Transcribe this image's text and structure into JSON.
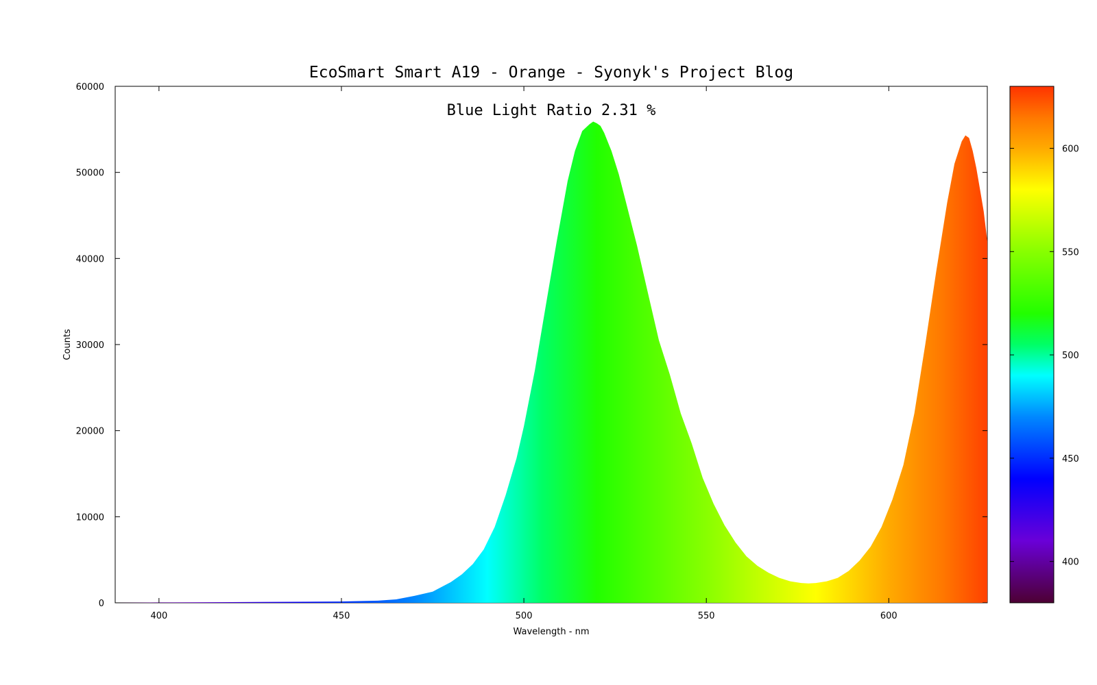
{
  "chart_data": {
    "type": "area",
    "title": "EcoSmart Smart A19 - Orange - Syonyk's Project Blog",
    "annotation": "Blue Light Ratio 2.31 %",
    "xlabel": "Wavelength - nm",
    "ylabel": "Counts",
    "xlim": [
      388,
      627
    ],
    "ylim": [
      0,
      60000
    ],
    "xticks": [
      400,
      450,
      500,
      550,
      600
    ],
    "yticks": [
      0,
      10000,
      20000,
      30000,
      40000,
      50000,
      60000
    ],
    "colorbar": {
      "range": [
        380,
        630
      ],
      "ticks": [
        400,
        450,
        500,
        550,
        600
      ]
    },
    "series": [
      {
        "x": [
          388,
          400,
          420,
          440,
          450,
          460,
          465,
          470,
          475,
          480,
          483,
          486,
          489,
          492,
          495,
          498,
          500,
          503,
          506,
          509,
          512,
          514,
          516,
          518,
          519,
          520,
          521,
          522,
          524,
          526,
          528,
          531,
          534,
          537,
          540,
          543,
          546,
          549,
          552,
          555,
          558,
          561,
          564,
          567,
          570,
          573,
          576,
          578,
          580,
          583,
          586,
          589,
          592,
          595,
          598,
          601,
          604,
          607,
          610,
          613,
          616,
          618,
          620,
          621,
          622,
          623,
          624,
          625,
          626,
          627
        ],
        "y": [
          0,
          50,
          80,
          120,
          150,
          250,
          400,
          800,
          1300,
          2400,
          3300,
          4500,
          6200,
          8800,
          12500,
          16800,
          20500,
          27000,
          34500,
          42000,
          49000,
          52500,
          54800,
          55600,
          55900,
          55700,
          55400,
          54600,
          52500,
          49800,
          46500,
          41500,
          36000,
          30500,
          26500,
          22000,
          18500,
          14500,
          11500,
          9000,
          7000,
          5400,
          4300,
          3500,
          2900,
          2500,
          2300,
          2250,
          2300,
          2500,
          2900,
          3700,
          4900,
          6500,
          8800,
          12000,
          16000,
          22000,
          30000,
          38500,
          46500,
          51000,
          53600,
          54300,
          54000,
          52500,
          50500,
          48000,
          45500,
          42000
        ]
      }
    ]
  },
  "colors": {
    "spectrum_stops": [
      {
        "nm": 380,
        "color": "#4d0033"
      },
      {
        "nm": 410,
        "color": "#6a00d8"
      },
      {
        "nm": 440,
        "color": "#0000ff"
      },
      {
        "nm": 470,
        "color": "#0088ff"
      },
      {
        "nm": 490,
        "color": "#00ffff"
      },
      {
        "nm": 505,
        "color": "#00ff66"
      },
      {
        "nm": 520,
        "color": "#22ff00"
      },
      {
        "nm": 550,
        "color": "#88ff00"
      },
      {
        "nm": 580,
        "color": "#ffff00"
      },
      {
        "nm": 600,
        "color": "#ffaa00"
      },
      {
        "nm": 615,
        "color": "#ff7700"
      },
      {
        "nm": 630,
        "color": "#ff3300"
      }
    ]
  }
}
